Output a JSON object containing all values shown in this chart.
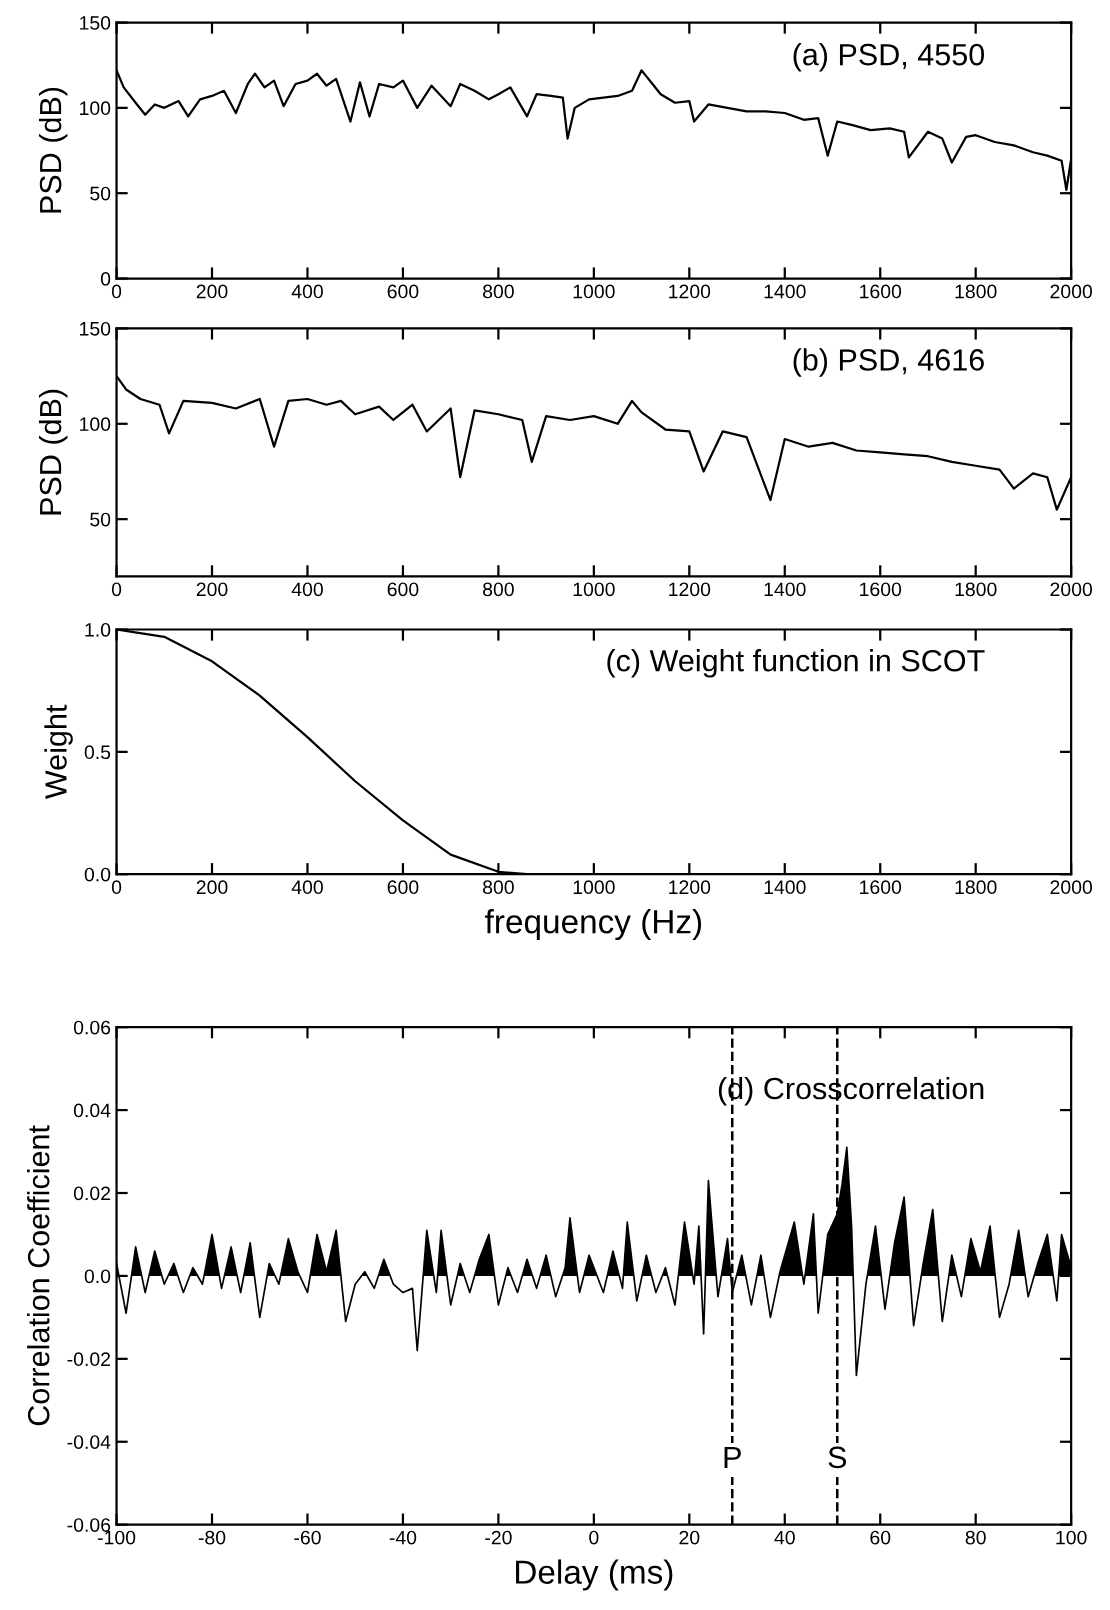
{
  "chart_data": [
    {
      "type": "line",
      "ylabel": "PSD (dB)",
      "annotations": [
        "(a) PSD, 4550"
      ],
      "xlim": [
        0,
        2000
      ],
      "ylim": [
        0,
        150
      ],
      "xticks": [
        0,
        200,
        400,
        600,
        800,
        1000,
        1200,
        1400,
        1600,
        1800,
        2000
      ],
      "yticks": [
        0,
        50,
        100,
        150
      ],
      "series": [
        {
          "color": "#000000",
          "x": [
            0,
            15,
            40,
            60,
            80,
            100,
            130,
            150,
            175,
            200,
            225,
            250,
            275,
            290,
            310,
            330,
            350,
            375,
            400,
            420,
            440,
            460,
            490,
            510,
            530,
            550,
            580,
            600,
            630,
            660,
            700,
            720,
            750,
            780,
            800,
            825,
            860,
            880,
            910,
            935,
            945,
            960,
            990,
            1020,
            1050,
            1080,
            1100,
            1120,
            1140,
            1170,
            1200,
            1210,
            1240,
            1280,
            1320,
            1360,
            1400,
            1440,
            1470,
            1490,
            1510,
            1540,
            1580,
            1620,
            1650,
            1660,
            1700,
            1730,
            1750,
            1780,
            1800,
            1840,
            1880,
            1920,
            1950,
            1980,
            1990,
            2000
          ],
          "values": [
            122,
            112,
            103,
            96,
            102,
            100,
            104,
            95,
            105,
            107,
            110,
            97,
            114,
            120,
            112,
            116,
            101,
            114,
            116,
            120,
            113,
            117,
            92,
            115,
            95,
            114,
            112,
            116,
            100,
            113,
            101,
            114,
            110,
            105,
            108,
            112,
            95,
            108,
            107,
            106,
            82,
            100,
            105,
            106,
            107,
            110,
            122,
            115,
            108,
            103,
            104,
            92,
            102,
            100,
            98,
            98,
            97,
            93,
            94,
            72,
            92,
            90,
            87,
            88,
            86,
            71,
            86,
            82,
            68,
            83,
            84,
            80,
            78,
            74,
            72,
            69,
            52,
            70
          ]
        }
      ]
    },
    {
      "type": "line",
      "ylabel": "PSD (dB)",
      "annotations": [
        "(b) PSD, 4616"
      ],
      "xlim": [
        0,
        2000
      ],
      "ylim": [
        20,
        150
      ],
      "xticks": [
        0,
        200,
        400,
        600,
        800,
        1000,
        1200,
        1400,
        1600,
        1800,
        2000
      ],
      "yticks": [
        50,
        100,
        150
      ],
      "series": [
        {
          "color": "#000000",
          "x": [
            0,
            20,
            50,
            90,
            110,
            140,
            200,
            250,
            300,
            330,
            360,
            400,
            440,
            470,
            500,
            550,
            580,
            620,
            650,
            700,
            720,
            750,
            800,
            850,
            870,
            900,
            950,
            1000,
            1050,
            1080,
            1100,
            1150,
            1200,
            1230,
            1270,
            1320,
            1370,
            1400,
            1450,
            1500,
            1550,
            1600,
            1650,
            1700,
            1750,
            1800,
            1850,
            1880,
            1920,
            1950,
            1970,
            2000
          ],
          "values": [
            125,
            118,
            113,
            110,
            95,
            112,
            111,
            108,
            113,
            88,
            112,
            113,
            110,
            112,
            105,
            109,
            102,
            110,
            96,
            108,
            72,
            107,
            105,
            102,
            80,
            104,
            102,
            104,
            100,
            112,
            106,
            97,
            96,
            75,
            96,
            93,
            60,
            92,
            88,
            90,
            86,
            85,
            84,
            83,
            80,
            78,
            76,
            66,
            74,
            72,
            55,
            72
          ]
        }
      ]
    },
    {
      "type": "line",
      "ylabel": "Weight",
      "xlabel": "frequency (Hz)",
      "annotations": [
        "(c) Weight function in SCOT"
      ],
      "xlim": [
        0,
        2000
      ],
      "ylim": [
        0,
        1
      ],
      "xticks": [
        0,
        200,
        400,
        600,
        800,
        1000,
        1200,
        1400,
        1600,
        1800,
        2000
      ],
      "yticks": [
        {
          "value": 0,
          "label": "0.0"
        },
        {
          "value": 0.5,
          "label": "0.5"
        },
        {
          "value": 1,
          "label": "1.0"
        }
      ],
      "series": [
        {
          "color": "#000000",
          "x": [
            0,
            100,
            200,
            300,
            400,
            500,
            600,
            700,
            800,
            860,
            2000
          ],
          "values": [
            1.0,
            0.97,
            0.87,
            0.73,
            0.56,
            0.38,
            0.22,
            0.08,
            0.01,
            0.0,
            0.0
          ]
        }
      ]
    },
    {
      "type": "line",
      "ylabel": "Correlation Coefficient",
      "xlabel": "Delay (ms)",
      "annotations": [
        "(d) Crosscorrelation"
      ],
      "xlim": [
        -100,
        100
      ],
      "ylim": [
        -0.06,
        0.06
      ],
      "xticks": [
        -100,
        -80,
        -60,
        -40,
        -20,
        0,
        20,
        40,
        60,
        80,
        100
      ],
      "yticks": [
        {
          "value": -0.06,
          "label": "-0.06"
        },
        {
          "value": -0.04,
          "label": "-0.04"
        },
        {
          "value": -0.02,
          "label": "-0.02"
        },
        {
          "value": 0,
          "label": "0.0"
        },
        {
          "value": 0.02,
          "label": "0.02"
        },
        {
          "value": 0.04,
          "label": "0.04"
        },
        {
          "value": 0.06,
          "label": "0.06"
        }
      ],
      "ref_lines": [
        {
          "axis": "x",
          "value": 29,
          "label": "P",
          "line_style": "dashed"
        },
        {
          "axis": "x",
          "value": 51,
          "label": "S",
          "line_style": "dashed"
        }
      ],
      "series": [
        {
          "color": "#000000",
          "x": [
            -100,
            -98,
            -96,
            -94,
            -92,
            -90,
            -88,
            -86,
            -84,
            -82,
            -80,
            -78,
            -76,
            -74,
            -72,
            -70,
            -68,
            -66,
            -64,
            -62,
            -60,
            -58,
            -56,
            -54,
            -52,
            -50,
            -48,
            -46,
            -44,
            -42,
            -40,
            -38,
            -37,
            -35,
            -33,
            -32,
            -30,
            -28,
            -26,
            -24,
            -22,
            -20,
            -18,
            -16,
            -14,
            -12,
            -10,
            -8,
            -6,
            -5,
            -3,
            -1,
            0,
            2,
            4,
            6,
            7,
            9,
            11,
            13,
            15,
            17,
            19,
            21,
            22,
            23,
            24,
            26,
            28,
            29,
            31,
            33,
            35,
            37,
            39,
            42,
            44,
            46,
            47,
            49,
            51,
            52,
            53,
            54,
            55,
            57,
            59,
            61,
            63,
            65,
            67,
            69,
            71,
            73,
            75,
            77,
            79,
            81,
            83,
            85,
            87,
            89,
            91,
            93,
            95,
            97,
            98,
            100
          ],
          "values": [
            0.003,
            -0.009,
            0.007,
            -0.004,
            0.006,
            -0.002,
            0.003,
            -0.004,
            0.002,
            -0.002,
            0.01,
            -0.003,
            0.007,
            -0.004,
            0.008,
            -0.01,
            0.003,
            -0.002,
            0.009,
            0.001,
            -0.004,
            0.01,
            0.001,
            0.011,
            -0.011,
            -0.002,
            0.001,
            -0.003,
            0.004,
            -0.002,
            -0.004,
            -0.003,
            -0.018,
            0.011,
            -0.004,
            0.011,
            -0.007,
            0.003,
            -0.004,
            0.004,
            0.01,
            -0.007,
            0.002,
            -0.004,
            0.004,
            -0.003,
            0.005,
            -0.005,
            0.002,
            0.014,
            -0.004,
            0.005,
            0.002,
            -0.004,
            0.006,
            -0.003,
            0.013,
            -0.006,
            0.005,
            -0.004,
            0.002,
            -0.007,
            0.013,
            -0.002,
            0.012,
            -0.014,
            0.023,
            -0.005,
            0.009,
            -0.004,
            0.005,
            -0.007,
            0.005,
            -0.01,
            0.001,
            0.013,
            -0.002,
            0.015,
            -0.009,
            0.01,
            0.015,
            0.022,
            0.031,
            0.012,
            -0.024,
            -0.002,
            0.012,
            -0.008,
            0.008,
            0.019,
            -0.012,
            0.003,
            0.016,
            -0.011,
            0.005,
            -0.005,
            0.009,
            0.001,
            0.012,
            -0.01,
            -0.002,
            0.011,
            -0.005,
            0.003,
            0.01,
            -0.006,
            0.01,
            0.002
          ]
        }
      ]
    }
  ]
}
